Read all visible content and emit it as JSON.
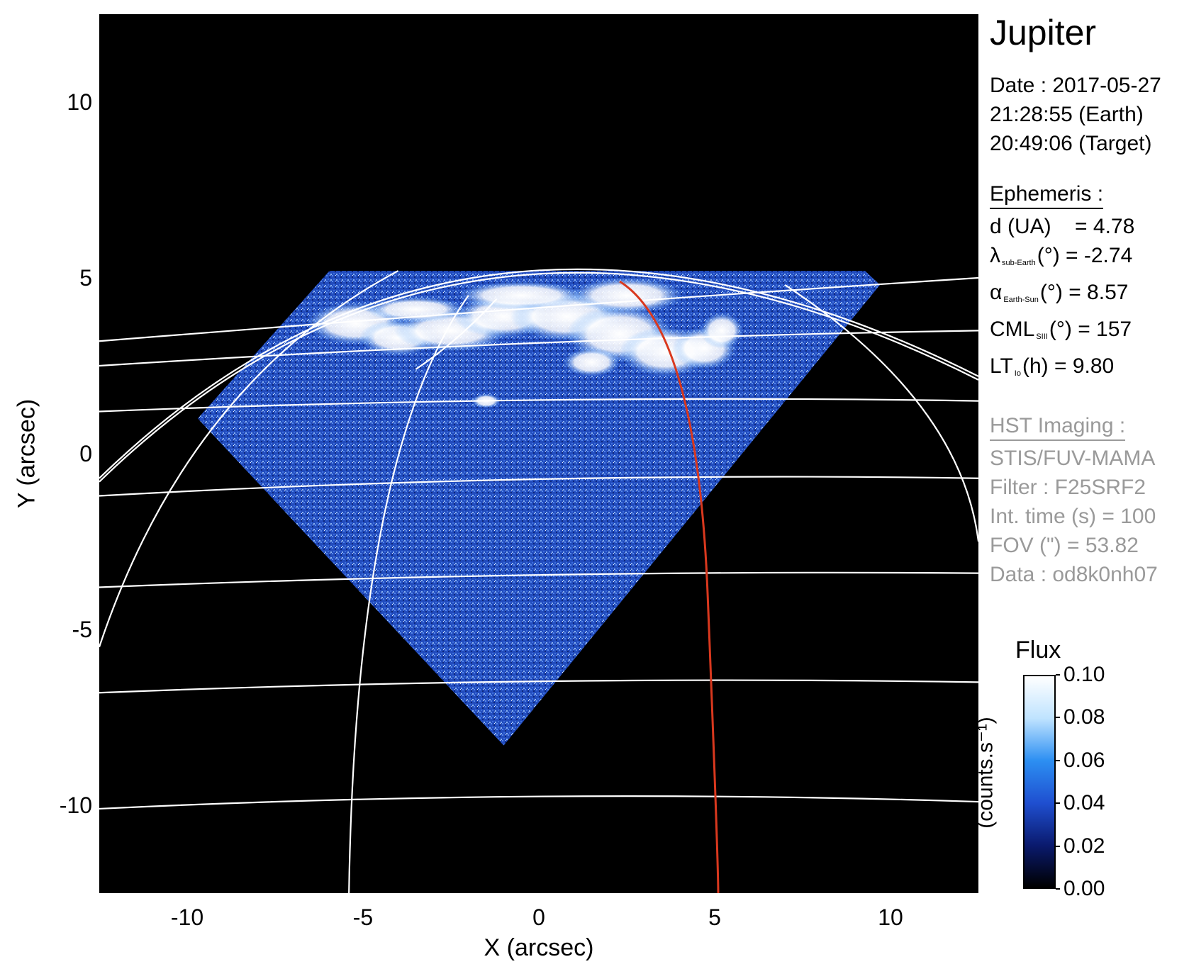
{
  "figure": {
    "target": "Jupiter",
    "date_line": "Date : 2017-05-27",
    "time_earth": "21:28:55 (Earth)",
    "time_target": "20:49:06 (Target)"
  },
  "ephemeris": {
    "heading": "Ephemeris :",
    "distance": {
      "label": "d (UA)",
      "value": "= 4.78"
    },
    "sub_earth_longitude": {
      "symbol": "λ",
      "subscript": "sub-Earth",
      "unit": "(°)",
      "value": "= -2.74"
    },
    "phase_angle": {
      "symbol": "α",
      "subscript": "Earth-Sun",
      "unit": "(°)",
      "value": "= 8.57"
    },
    "cml": {
      "symbol": "CML",
      "subscript": "SIII",
      "unit": "(°)",
      "value": "= 157"
    },
    "local_time": {
      "symbol": "LT",
      "subscript": "Io",
      "unit": "(h)",
      "value": "= 9.80"
    }
  },
  "hst_imaging": {
    "heading": "HST Imaging :",
    "instrument": "STIS/FUV-MAMA",
    "filter": "Filter : F25SRF2",
    "int_time": "Int. time (s) = 100",
    "fov": "FOV (\") = 53.82",
    "data_id": "Data : od8k0nh07"
  },
  "axes": {
    "x_label": "X (arcsec)",
    "y_label": "Y (arcsec)",
    "x_ticks": [
      "-10",
      "-5",
      "0",
      "5",
      "10"
    ],
    "y_ticks": [
      "10",
      "5",
      "0",
      "-5",
      "-10"
    ],
    "x_tick_values": [
      -10,
      -5,
      0,
      5,
      10
    ],
    "y_tick_values": [
      10,
      5,
      0,
      -5,
      -10
    ],
    "xlim": [
      -12.5,
      12.5
    ],
    "ylim": [
      -12.5,
      12.5
    ]
  },
  "colorbar": {
    "title": "Flux",
    "unit": "(counts.s⁻¹)",
    "tick_labels": [
      "0.10",
      "0.08",
      "0.06",
      "0.04",
      "0.02",
      "0.00"
    ],
    "tick_values": [
      0.1,
      0.08,
      0.06,
      0.04,
      0.02,
      0.0
    ],
    "range": [
      0.0,
      0.1
    ],
    "colors": [
      "#000000",
      "#0a1a6e",
      "#1f4fd0",
      "#2c8ff2",
      "#bfe3ff",
      "#ffffff"
    ]
  },
  "colors": {
    "background": "#000000",
    "grid": "#ffffff",
    "io_footpath": "#d9381e",
    "emission_low": "#1a3fb0",
    "emission_high": "#ffffff"
  }
}
